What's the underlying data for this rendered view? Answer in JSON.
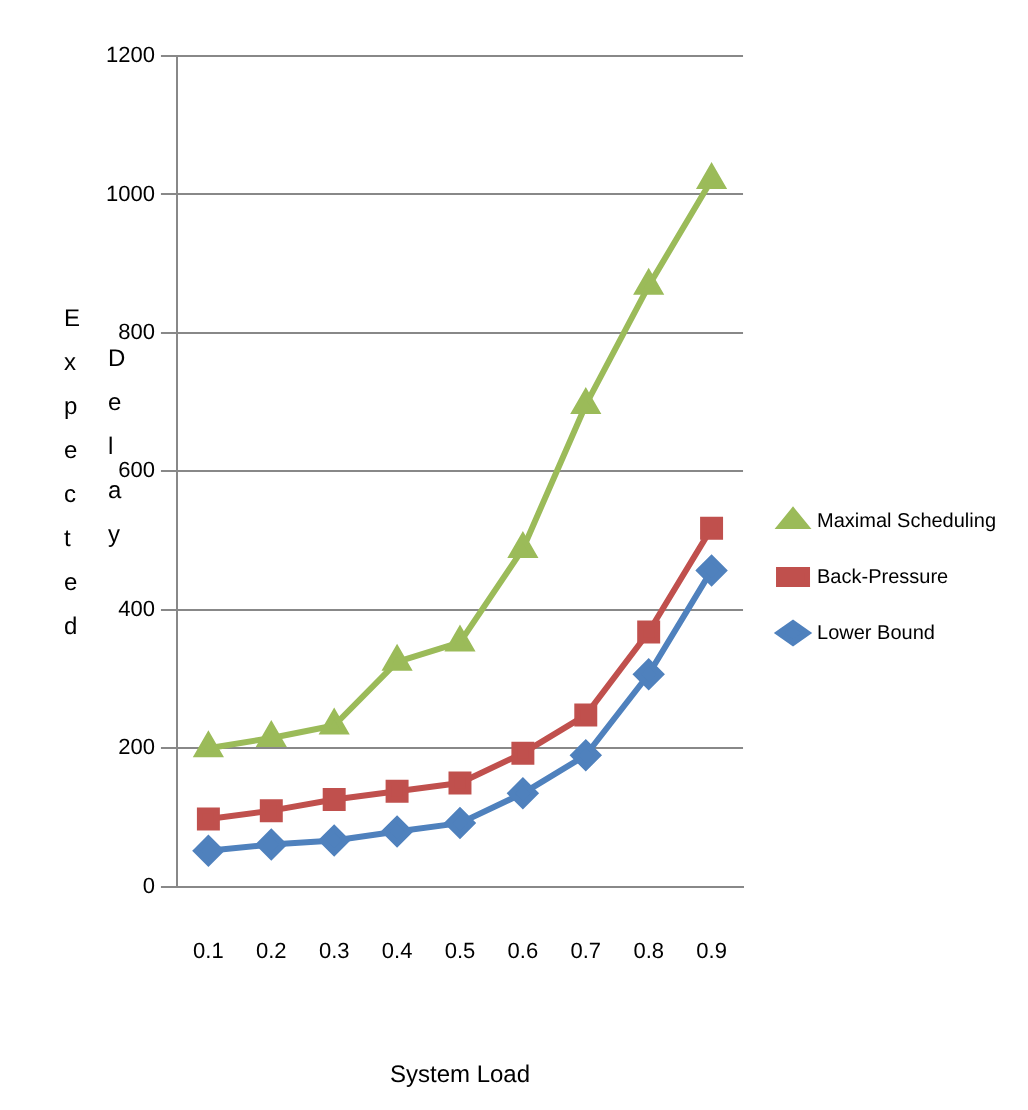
{
  "chart_data": {
    "type": "line",
    "xlabel": "System Load",
    "ylabel": "Expected Delay",
    "categories": [
      "0.1",
      "0.2",
      "0.3",
      "0.4",
      "0.5",
      "0.6",
      "0.7",
      "0.8",
      "0.9"
    ],
    "series": [
      {
        "name": "Maximal Scheduling",
        "color": "#9bbb59",
        "marker": "triangle",
        "values": [
          200,
          215,
          233,
          325,
          353,
          488,
          696,
          868,
          1021
        ]
      },
      {
        "name": "Back-Pressure",
        "color": "#c0504d",
        "marker": "square",
        "values": [
          98,
          110,
          126,
          138,
          150,
          193,
          248,
          368,
          518
        ]
      },
      {
        "name": "Lower Bound",
        "color": "#4f81bd",
        "marker": "diamond",
        "values": [
          52,
          61,
          67,
          80,
          92,
          135,
          190,
          307,
          457
        ]
      }
    ],
    "ylim": [
      0,
      1200
    ],
    "yticks": [
      0,
      200,
      400,
      600,
      800,
      1000,
      1200
    ],
    "grid": "y",
    "legend": "right"
  }
}
